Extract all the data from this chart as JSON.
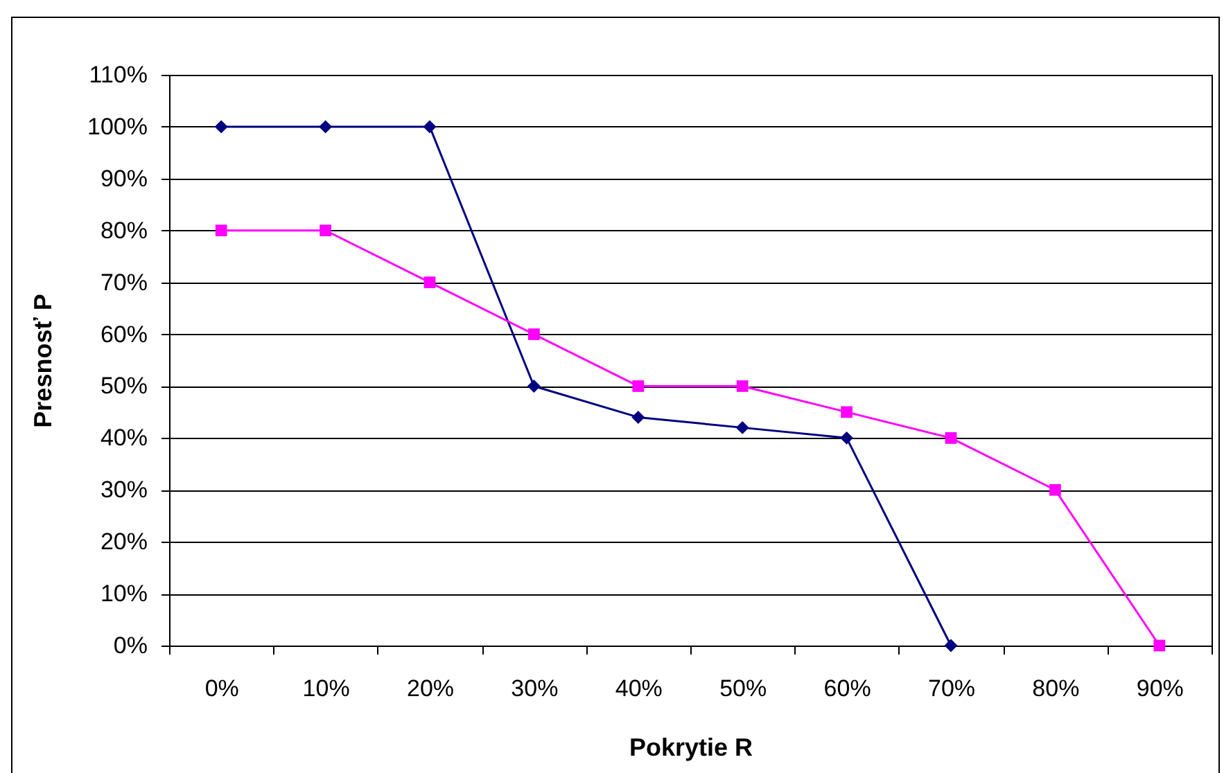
{
  "chart_data": {
    "type": "line",
    "xlabel": "Pokrytie R",
    "ylabel": "Presnosť P",
    "categories": [
      "0%",
      "10%",
      "20%",
      "30%",
      "40%",
      "50%",
      "60%",
      "70%",
      "80%",
      "90%"
    ],
    "series": [
      {
        "color": "#000080",
        "marker": "diamond",
        "values": [
          100,
          100,
          100,
          50,
          44,
          42,
          40,
          0,
          null,
          null
        ]
      },
      {
        "color": "#ff00ff",
        "marker": "square",
        "values": [
          80,
          80,
          70,
          60,
          50,
          50,
          45,
          40,
          30,
          0
        ]
      }
    ],
    "ylim": [
      0,
      110
    ],
    "yticks": [
      {
        "value": 0,
        "label": "0%"
      },
      {
        "value": 10,
        "label": "10%"
      },
      {
        "value": 20,
        "label": "20%"
      },
      {
        "value": 30,
        "label": "30%"
      },
      {
        "value": 40,
        "label": "40%"
      },
      {
        "value": 50,
        "label": "50%"
      },
      {
        "value": 60,
        "label": "60%"
      },
      {
        "value": 70,
        "label": "70%"
      },
      {
        "value": 80,
        "label": "80%"
      },
      {
        "value": 90,
        "label": "90%"
      },
      {
        "value": 100,
        "label": "100%"
      },
      {
        "value": 110,
        "label": "110%"
      }
    ],
    "grid": "y"
  }
}
